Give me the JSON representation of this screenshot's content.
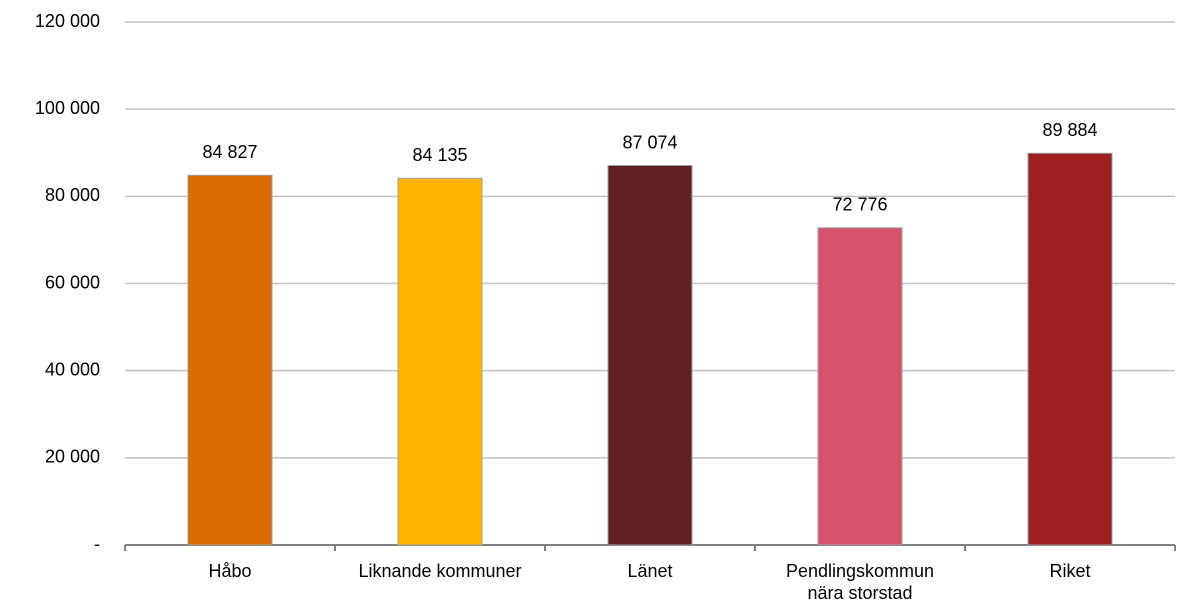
{
  "chart_data": {
    "type": "bar",
    "categories": [
      "Håbo",
      "Liknande kommuner",
      "Länet",
      "Pendlingskommun\nnära storstad",
      "Riket"
    ],
    "values": [
      84827,
      84135,
      87074,
      72776,
      89884
    ],
    "value_labels": [
      "84 827",
      "84 135",
      "87 074",
      "72 776",
      "89 884"
    ],
    "colors": [
      "#d96b00",
      "#ffb400",
      "#5e2020",
      "#d9526b",
      "#9e1f1f"
    ],
    "ylim": [
      0,
      120000
    ],
    "yticks": [
      {
        "value": 0,
        "label": "-"
      },
      {
        "value": 20000,
        "label": "20 000"
      },
      {
        "value": 40000,
        "label": "40 000"
      },
      {
        "value": 60000,
        "label": "60 000"
      },
      {
        "value": 80000,
        "label": "80 000"
      },
      {
        "value": 100000,
        "label": "100 000"
      },
      {
        "value": 120000,
        "label": "120 000"
      }
    ],
    "grid": true
  }
}
